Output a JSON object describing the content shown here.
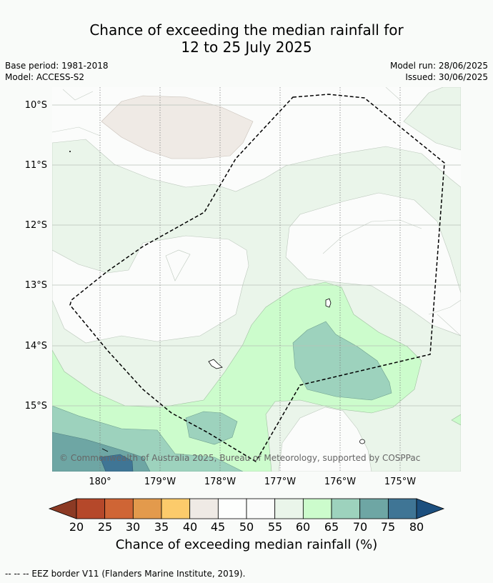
{
  "title_line1": "Chance of exceeding the median rainfall for",
  "title_line2": "12 to 25 July 2025",
  "base_period": "Base period: 1981-2018",
  "model": "Model: ACCESS-S2",
  "model_run": "Model run: 28/06/2025",
  "issued": "Issued: 30/06/2025",
  "lat_labels": [
    "10°S",
    "11°S",
    "12°S",
    "13°S",
    "14°S",
    "15°S"
  ],
  "lon_labels": [
    "180°",
    "179°W",
    "178°W",
    "177°W",
    "176°W",
    "175°W"
  ],
  "copyright": "© Commonwealth of Australia 2025, Bureau of Meteorology, supported by COSPPac",
  "colorbar": {
    "labels": [
      "20",
      "25",
      "30",
      "35",
      "40",
      "45",
      "50",
      "55",
      "60",
      "65",
      "70",
      "75",
      "80"
    ],
    "colors": [
      "#8c3a24",
      "#b5482a",
      "#cf6535",
      "#e39a4c",
      "#fccb6b",
      "#efeae5",
      "#fdfefd",
      "#fbfcfb",
      "#eaf5ea",
      "#ccfccc",
      "#9dd2bd",
      "#6ea6a4",
      "#3f7595",
      "#1c4f7e"
    ],
    "title": "Chance of exceeding median rainfall (%)"
  },
  "footer": "--  --  -- EEZ border V11 (Flanders Marine Institute, 2019)."
}
